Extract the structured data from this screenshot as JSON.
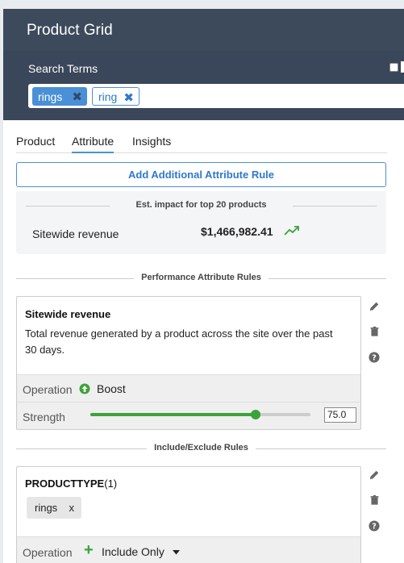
{
  "header": {
    "title": "Product Grid"
  },
  "search": {
    "label": "Search Terms",
    "chips": [
      {
        "label": "rings",
        "selected": true
      },
      {
        "label": "ring",
        "selected": false
      }
    ],
    "remove_glyph": "✖"
  },
  "tabs": [
    {
      "label": "Product",
      "active": false
    },
    {
      "label": "Attribute",
      "active": true
    },
    {
      "label": "Insights",
      "active": false
    }
  ],
  "add_rule_label": "Add Additional Attribute Rule",
  "impact": {
    "heading": "Est. impact for top 20 products",
    "metric_label": "Sitewide revenue",
    "metric_value": "$1,466,982.41",
    "trend": "up"
  },
  "performance_section": {
    "heading": "Performance Attribute Rules"
  },
  "performance_rule": {
    "title": "Sitewide revenue",
    "description": "Total revenue generated by a product across the site over the past 30 days.",
    "operation_label": "Operation",
    "operation_value": "Boost",
    "strength_label": "Strength",
    "strength_value": "75.0",
    "strength_fraction": 0.75
  },
  "include_section": {
    "heading": "Include/Exclude Rules"
  },
  "include_rule": {
    "title": "PRODUCTTYPE",
    "count": "(1)",
    "tag": "rings",
    "tag_remove": "x",
    "operation_label": "Operation",
    "operation_value": "Include Only"
  },
  "icons": [
    "pencil-icon",
    "trash-icon",
    "help-icon",
    "arrow-up-circle-icon",
    "plus-icon",
    "caret-down-icon",
    "trend-up-icon"
  ],
  "colors": {
    "header": "#3d4a5c",
    "accent": "#4a90d6",
    "green": "#3aa43a"
  }
}
